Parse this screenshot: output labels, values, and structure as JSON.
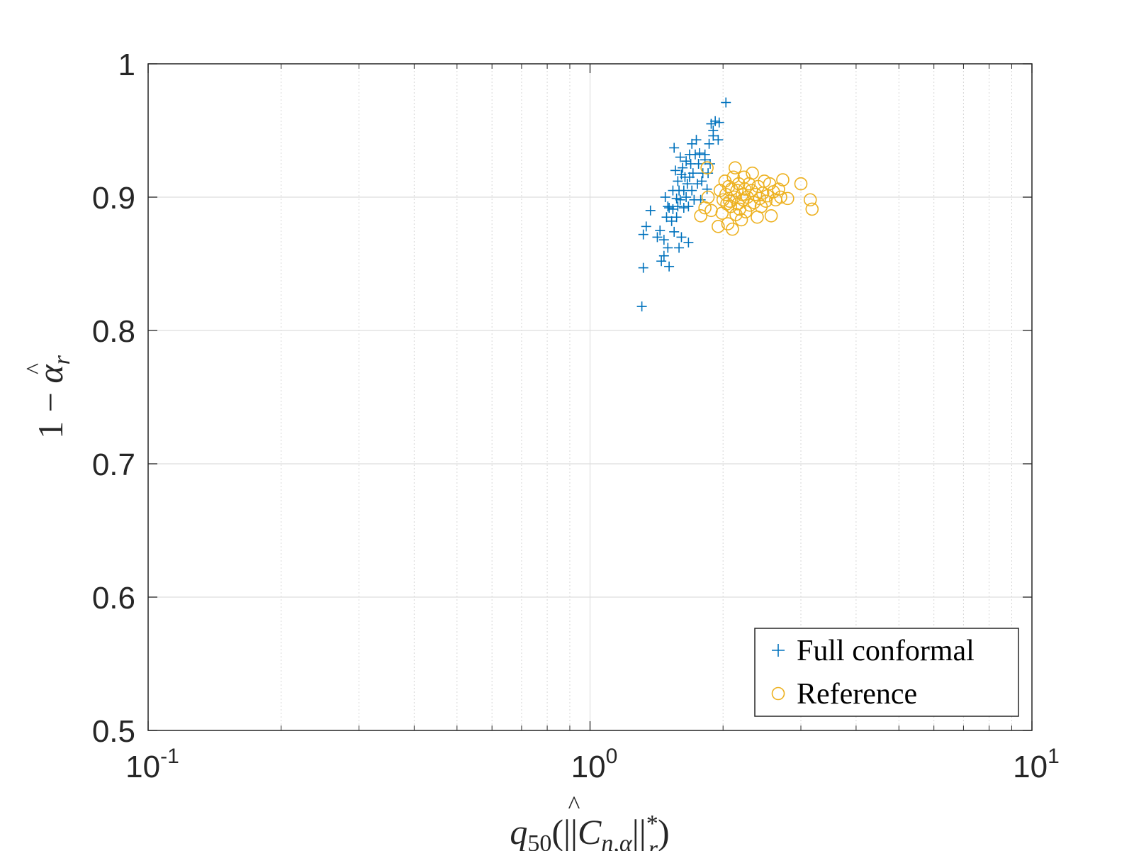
{
  "chart_data": {
    "type": "scatter",
    "title": "",
    "x_scale": "log",
    "xlim": [
      0.1,
      10
    ],
    "ylim": [
      0.5,
      1.0
    ],
    "x_ticks": [
      {
        "value": 0.1,
        "base": "10",
        "exp": "-1"
      },
      {
        "value": 1,
        "base": "10",
        "exp": "0"
      },
      {
        "value": 10,
        "base": "10",
        "exp": "1"
      }
    ],
    "y_ticks": [
      {
        "value": 0.5,
        "label": "0.5"
      },
      {
        "value": 0.6,
        "label": "0.6"
      },
      {
        "value": 0.7,
        "label": "0.7"
      },
      {
        "value": 0.8,
        "label": "0.8"
      },
      {
        "value": 0.9,
        "label": "0.9"
      },
      {
        "value": 1.0,
        "label": "1"
      }
    ],
    "xlabel": {
      "main": "q",
      "sub50": "50",
      "open": "(||",
      "C": "C",
      "hat": "^",
      "sub": "n,α",
      "close": "||",
      "sup": "*",
      "subr": "r",
      "end": ")"
    },
    "ylabel": {
      "lead": "1 − ",
      "alpha": "α",
      "hat": "^",
      "sub": "r"
    },
    "grid": true,
    "legend_position": "bottom-right",
    "series": [
      {
        "name": "Full conformal",
        "marker": "+",
        "color": "#0072BD",
        "points": [
          [
            1.31,
            0.818
          ],
          [
            1.32,
            0.847
          ],
          [
            1.32,
            0.872
          ],
          [
            1.34,
            0.878
          ],
          [
            1.37,
            0.89
          ],
          [
            1.42,
            0.87
          ],
          [
            1.44,
            0.875
          ],
          [
            1.45,
            0.852
          ],
          [
            1.47,
            0.856
          ],
          [
            1.47,
            0.868
          ],
          [
            1.48,
            0.9
          ],
          [
            1.49,
            0.885
          ],
          [
            1.5,
            0.862
          ],
          [
            1.5,
            0.893
          ],
          [
            1.51,
            0.892
          ],
          [
            1.51,
            0.848
          ],
          [
            1.53,
            0.882
          ],
          [
            1.54,
            0.905
          ],
          [
            1.54,
            0.891
          ],
          [
            1.55,
            0.937
          ],
          [
            1.55,
            0.874
          ],
          [
            1.56,
            0.92
          ],
          [
            1.57,
            0.885
          ],
          [
            1.57,
            0.899
          ],
          [
            1.58,
            0.912
          ],
          [
            1.58,
            0.893
          ],
          [
            1.59,
            0.862
          ],
          [
            1.59,
            0.905
          ],
          [
            1.6,
            0.93
          ],
          [
            1.6,
            0.898
          ],
          [
            1.61,
            0.917
          ],
          [
            1.61,
            0.87
          ],
          [
            1.62,
            0.922
          ],
          [
            1.63,
            0.905
          ],
          [
            1.63,
            0.892
          ],
          [
            1.64,
            0.915
          ],
          [
            1.65,
            0.927
          ],
          [
            1.65,
            0.9
          ],
          [
            1.66,
            0.91
          ],
          [
            1.67,
            0.893
          ],
          [
            1.67,
            0.866
          ],
          [
            1.68,
            0.932
          ],
          [
            1.68,
            0.915
          ],
          [
            1.69,
            0.925
          ],
          [
            1.7,
            0.905
          ],
          [
            1.7,
            0.94
          ],
          [
            1.71,
            0.918
          ],
          [
            1.72,
            0.898
          ],
          [
            1.73,
            0.932
          ],
          [
            1.74,
            0.943
          ],
          [
            1.75,
            0.91
          ],
          [
            1.76,
            0.925
          ],
          [
            1.77,
            0.933
          ],
          [
            1.78,
            0.898
          ],
          [
            1.79,
            0.912
          ],
          [
            1.8,
            0.918
          ],
          [
            1.82,
            0.932
          ],
          [
            1.82,
            0.928
          ],
          [
            1.84,
            0.906
          ],
          [
            1.85,
            0.918
          ],
          [
            1.86,
            0.94
          ],
          [
            1.87,
            0.925
          ],
          [
            1.88,
            0.955
          ],
          [
            1.9,
            0.95
          ],
          [
            1.9,
            0.946
          ],
          [
            1.92,
            0.957
          ],
          [
            1.95,
            0.943
          ],
          [
            1.96,
            0.956
          ],
          [
            2.03,
            0.971
          ]
        ]
      },
      {
        "name": "Reference",
        "marker": "o",
        "color": "#EDB120",
        "points": [
          [
            1.78,
            0.886
          ],
          [
            1.82,
            0.892
          ],
          [
            1.84,
            0.922
          ],
          [
            1.85,
            0.9
          ],
          [
            1.88,
            0.89
          ],
          [
            1.95,
            0.878
          ],
          [
            1.97,
            0.905
          ],
          [
            1.99,
            0.888
          ],
          [
            2.0,
            0.898
          ],
          [
            2.02,
            0.912
          ],
          [
            2.03,
            0.902
          ],
          [
            2.04,
            0.895
          ],
          [
            2.05,
            0.88
          ],
          [
            2.06,
            0.908
          ],
          [
            2.07,
            0.897
          ],
          [
            2.08,
            0.893
          ],
          [
            2.09,
            0.906
          ],
          [
            2.1,
            0.876
          ],
          [
            2.11,
            0.915
          ],
          [
            2.12,
            0.9
          ],
          [
            2.13,
            0.922
          ],
          [
            2.14,
            0.887
          ],
          [
            2.15,
            0.905
          ],
          [
            2.16,
            0.895
          ],
          [
            2.17,
            0.91
          ],
          [
            2.18,
            0.891
          ],
          [
            2.2,
            0.883
          ],
          [
            2.21,
            0.902
          ],
          [
            2.22,
            0.898
          ],
          [
            2.23,
            0.915
          ],
          [
            2.24,
            0.906
          ],
          [
            2.25,
            0.889
          ],
          [
            2.27,
            0.9
          ],
          [
            2.29,
            0.91
          ],
          [
            2.3,
            0.894
          ],
          [
            2.32,
            0.905
          ],
          [
            2.33,
            0.918
          ],
          [
            2.35,
            0.896
          ],
          [
            2.37,
            0.902
          ],
          [
            2.39,
            0.885
          ],
          [
            2.4,
            0.908
          ],
          [
            2.42,
            0.899
          ],
          [
            2.44,
            0.893
          ],
          [
            2.46,
            0.903
          ],
          [
            2.48,
            0.912
          ],
          [
            2.5,
            0.897
          ],
          [
            2.52,
            0.901
          ],
          [
            2.55,
            0.91
          ],
          [
            2.57,
            0.886
          ],
          [
            2.6,
            0.904
          ],
          [
            2.63,
            0.898
          ],
          [
            2.67,
            0.906
          ],
          [
            2.7,
            0.9
          ],
          [
            2.73,
            0.913
          ],
          [
            2.8,
            0.899
          ],
          [
            3.0,
            0.91
          ],
          [
            3.15,
            0.898
          ],
          [
            3.18,
            0.891
          ]
        ]
      }
    ]
  }
}
